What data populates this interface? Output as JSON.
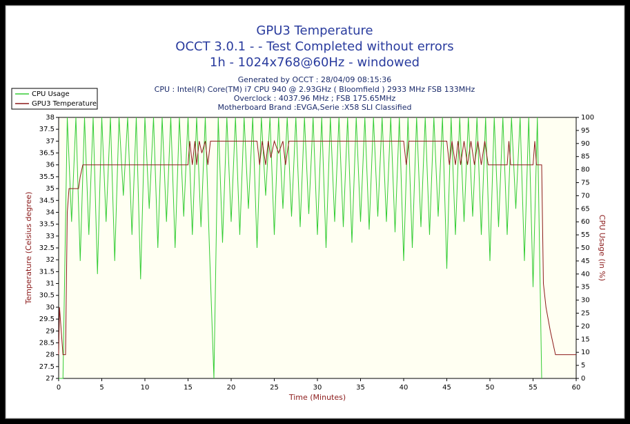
{
  "chart_data": {
    "type": "line",
    "title": "GPU3 Temperature",
    "subtitle": [
      "OCCT 3.0.1 -  - Test Completed without errors",
      "1h - 1024x768@60Hz - windowed"
    ],
    "annotations": [
      "Generated by OCCT : 28/04/09 08:15:36",
      "CPU : Intel(R) Core(TM) i7 CPU 940 @ 2.93GHz ( Bloomfield ) 2933 MHz FSB 133MHz",
      "Overclock : 4037.96 MHz ; FSB 175.65MHz",
      "Motherboard Brand :EVGA,Serie :X58 SLI Classified"
    ],
    "xlabel": "Time (Minutes)",
    "ylabel": "Temperature (Celsius degree)",
    "y2label": "CPU Usage (in %)",
    "xlim": [
      0,
      60
    ],
    "xticks": [
      0,
      5,
      10,
      15,
      20,
      25,
      30,
      35,
      40,
      45,
      50,
      55,
      60
    ],
    "ylim": [
      27,
      38
    ],
    "yticks": [
      27,
      27.5,
      28,
      28.5,
      29,
      29.5,
      30,
      30.5,
      31,
      31.5,
      32,
      32.5,
      33,
      33.5,
      34,
      34.5,
      35,
      35.5,
      36,
      36.5,
      37,
      37.5,
      38
    ],
    "y2lim": [
      0,
      100
    ],
    "y2ticks": [
      0,
      5,
      10,
      15,
      20,
      25,
      30,
      35,
      40,
      45,
      50,
      55,
      60,
      65,
      70,
      75,
      80,
      85,
      90,
      95,
      100
    ],
    "grid": false,
    "legend": "top-left",
    "series": [
      {
        "name": "CPU Usage",
        "color": "#33cc33",
        "axis": "y2",
        "x": [
          0,
          0.5,
          1,
          1.5,
          2,
          2.5,
          3,
          3.5,
          4,
          4.5,
          5,
          5.5,
          6,
          6.5,
          7,
          7.5,
          8,
          8.5,
          9,
          9.5,
          10,
          10.5,
          11,
          11.5,
          12,
          12.5,
          13,
          13.5,
          14,
          14.5,
          15,
          15.5,
          16,
          16.5,
          17,
          17.5,
          18,
          18.5,
          19,
          19.5,
          20,
          20.5,
          21,
          21.5,
          22,
          22.5,
          23,
          23.5,
          24,
          24.5,
          25,
          25.5,
          26,
          26.5,
          27,
          27.5,
          28,
          28.5,
          29,
          29.5,
          30,
          30.5,
          31,
          31.5,
          32,
          32.5,
          33,
          33.5,
          34,
          34.5,
          35,
          35.5,
          36,
          36.5,
          37,
          37.5,
          38,
          38.5,
          39,
          39.5,
          40,
          40.5,
          41,
          41.5,
          42,
          42.5,
          43,
          43.5,
          44,
          44.5,
          45,
          45.5,
          46,
          46.5,
          47,
          47.5,
          48,
          48.5,
          49,
          49.5,
          50,
          50.5,
          51,
          51.5,
          52,
          52.5,
          53,
          53.5,
          54,
          54.5,
          55,
          55.5,
          56
        ],
        "values": [
          0,
          0,
          100,
          60,
          100,
          45,
          100,
          55,
          100,
          40,
          100,
          60,
          100,
          45,
          100,
          70,
          100,
          55,
          100,
          38,
          100,
          65,
          100,
          50,
          100,
          60,
          100,
          50,
          100,
          62,
          100,
          55,
          100,
          58,
          100,
          48,
          0,
          100,
          52,
          100,
          60,
          100,
          55,
          100,
          65,
          100,
          50,
          100,
          70,
          100,
          55,
          100,
          65,
          100,
          62,
          100,
          58,
          100,
          63,
          100,
          55,
          100,
          50,
          100,
          60,
          100,
          58,
          100,
          52,
          100,
          60,
          100,
          57,
          100,
          62,
          100,
          60,
          100,
          56,
          100,
          45,
          100,
          50,
          100,
          58,
          100,
          55,
          100,
          62,
          100,
          42,
          100,
          55,
          100,
          60,
          100,
          62,
          100,
          55,
          100,
          45,
          100,
          58,
          100,
          55,
          100,
          65,
          100,
          45,
          100,
          35,
          100,
          0
        ]
      },
      {
        "name": "GPU3 Temperature",
        "color": "#8b1a1a",
        "x": [
          0,
          0.1,
          0.3,
          0.5,
          0.8,
          1.0,
          1.2,
          2.0,
          2.3,
          2.5,
          2.8,
          15,
          15.2,
          15.5,
          15.8,
          16,
          16.3,
          16.6,
          17,
          17.3,
          17.6,
          18,
          23,
          23.3,
          23.6,
          24,
          24.3,
          24.6,
          25,
          25.5,
          26,
          26.3,
          26.7,
          27,
          40,
          40.3,
          40.6,
          41,
          45,
          45.3,
          45.6,
          46,
          46.3,
          46.6,
          47,
          47.4,
          47.8,
          48.2,
          48.6,
          49,
          49.4,
          49.8,
          50,
          52,
          52.2,
          52.4,
          55,
          55.2,
          55.4,
          56,
          56.2,
          56.5,
          57,
          57.6,
          60
        ],
        "values": [
          28,
          30,
          29,
          28,
          28,
          34,
          35,
          35,
          35,
          35.5,
          36,
          36,
          37,
          36,
          37,
          36,
          37,
          36.5,
          37,
          36,
          37,
          37,
          37,
          36,
          37,
          36,
          37,
          36.3,
          37,
          36.5,
          37,
          36,
          37,
          37,
          37,
          36,
          37,
          37,
          37,
          36,
          37,
          36,
          37,
          36,
          37,
          36,
          37,
          36,
          37,
          36,
          37,
          36,
          36,
          36,
          37,
          36,
          36,
          37,
          36,
          36,
          31,
          30,
          29,
          28,
          28
        ]
      }
    ]
  }
}
